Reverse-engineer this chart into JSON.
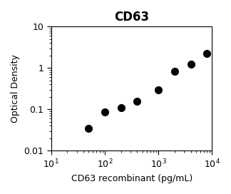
{
  "title": "CD63",
  "xlabel": "CD63 recombinant (pg/mL)",
  "ylabel": "Optical Density",
  "x_data": [
    50,
    100,
    200,
    400,
    1000,
    2000,
    4000,
    8000
  ],
  "y_data": [
    0.035,
    0.088,
    0.11,
    0.155,
    0.3,
    0.82,
    1.25,
    2.2
  ],
  "xlim": [
    10,
    10000
  ],
  "ylim": [
    0.01,
    10
  ],
  "marker": "o",
  "marker_color": "black",
  "marker_size": 7,
  "title_fontsize": 12,
  "label_fontsize": 9,
  "tick_fontsize": 9,
  "background_color": "#ffffff"
}
